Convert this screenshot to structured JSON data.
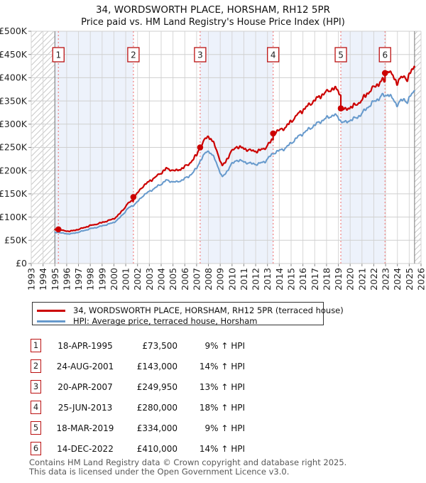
{
  "page": {
    "title": "34, WORDSWORTH PLACE, HORSHAM, RH12 5PR",
    "subtitle": "Price paid vs. HM Land Registry's House Price Index (HPI)"
  },
  "chart_data": {
    "type": "line",
    "title": "34, WORDSWORTH PLACE, HORSHAM, RH12 5PR",
    "subtitle": "Price paid vs. HM Land Registry's House Price Index (HPI)",
    "x_axis": {
      "min": 1993,
      "max": 2026,
      "tick_step": 1
    },
    "y_axis": {
      "min": 0,
      "max": 500000,
      "tick_step": 50000,
      "tick_labels": [
        "£0",
        "£50K",
        "£100K",
        "£150K",
        "£200K",
        "£250K",
        "£300K",
        "£350K",
        "£400K",
        "£450K",
        "£500K"
      ]
    },
    "grid": true,
    "legend_position": "below",
    "data_domain": [
      1995.0,
      2025.45
    ],
    "hatch_regions": [
      [
        1993,
        1995.0
      ],
      [
        2025.45,
        2026
      ]
    ],
    "shaded_bands": [
      [
        1995.0,
        2001.65
      ],
      [
        2007.3,
        2013.48
      ],
      [
        2019.21,
        2022.95
      ]
    ],
    "colors": {
      "price_line": "#cc0000",
      "hpi_line": "#6699cc",
      "sale_marker": "#cc0000",
      "sale_dashed_line": "#f08080",
      "band_fill": "#edf2fb",
      "grid_v": "#d6d6d6",
      "grid_h": "#cfcfcf",
      "hatch": "#c9c9c9",
      "boundary": "#7a7a7a",
      "tick_text": "#262626",
      "number_box_border": "#bb1111"
    },
    "series": [
      {
        "name": "34, WORDSWORTH PLACE, HORSHAM, RH12 5PR (terraced house)",
        "key": "price_indexed",
        "color": "#cc0000"
      },
      {
        "name": "HPI: Average price, terraced house, Horsham",
        "key": "hpi",
        "color": "#6699cc",
        "anchors": [
          [
            1995.0,
            66500
          ],
          [
            1995.3,
            67400
          ],
          [
            1995.7,
            65000
          ],
          [
            1996.1,
            63800
          ],
          [
            1996.5,
            64500
          ],
          [
            1997.0,
            67500
          ],
          [
            1997.5,
            71000
          ],
          [
            1998.0,
            75000
          ],
          [
            1998.5,
            77500
          ],
          [
            1999.0,
            81000
          ],
          [
            1999.5,
            84500
          ],
          [
            2000.0,
            88500
          ],
          [
            2000.4,
            96000
          ],
          [
            2000.8,
            107000
          ],
          [
            2001.2,
            119000
          ],
          [
            2001.65,
            125400
          ],
          [
            2002.0,
            133000
          ],
          [
            2002.5,
            147000
          ],
          [
            2003.0,
            155000
          ],
          [
            2003.5,
            163000
          ],
          [
            2004.0,
            171000
          ],
          [
            2004.4,
            179000
          ],
          [
            2004.8,
            177000
          ],
          [
            2005.3,
            175000
          ],
          [
            2005.8,
            180000
          ],
          [
            2006.3,
            187000
          ],
          [
            2006.7,
            196000
          ],
          [
            2007.0,
            205000
          ],
          [
            2007.3,
            221200
          ],
          [
            2007.9,
            243000
          ],
          [
            2008.2,
            238000
          ],
          [
            2008.6,
            222000
          ],
          [
            2009.0,
            196000
          ],
          [
            2009.17,
            185000
          ],
          [
            2009.5,
            196000
          ],
          [
            2009.9,
            212000
          ],
          [
            2010.4,
            223000
          ],
          [
            2011.0,
            219000
          ],
          [
            2011.6,
            215000
          ],
          [
            2012.2,
            214000
          ],
          [
            2012.8,
            220000
          ],
          [
            2013.48,
            237300
          ],
          [
            2014.0,
            243000
          ],
          [
            2014.5,
            248000
          ],
          [
            2015.0,
            259000
          ],
          [
            2015.5,
            271000
          ],
          [
            2016.0,
            280000
          ],
          [
            2016.5,
            289000
          ],
          [
            2017.0,
            298000
          ],
          [
            2017.5,
            306000
          ],
          [
            2018.0,
            313000
          ],
          [
            2018.6,
            320000
          ],
          [
            2019.0,
            315000
          ],
          [
            2019.21,
            306400
          ],
          [
            2019.6,
            303000
          ],
          [
            2020.0,
            309000
          ],
          [
            2020.5,
            313000
          ],
          [
            2021.0,
            323000
          ],
          [
            2021.5,
            337000
          ],
          [
            2022.0,
            348000
          ],
          [
            2022.5,
            357000
          ],
          [
            2022.8,
            363000
          ],
          [
            2022.95,
            359600
          ],
          [
            2023.2,
            366000
          ],
          [
            2023.6,
            354000
          ],
          [
            2023.95,
            342000
          ],
          [
            2024.3,
            350000
          ],
          [
            2024.6,
            353000
          ],
          [
            2024.85,
            348000
          ],
          [
            2025.1,
            360000
          ],
          [
            2025.45,
            372000
          ]
        ]
      }
    ],
    "sales": [
      {
        "num": "1",
        "date": "18-APR-1995",
        "year": 1995.3,
        "price": 73500,
        "price_label": "£73,500",
        "vs_hpi": "9% ↑ HPI"
      },
      {
        "num": "2",
        "date": "24-AUG-2001",
        "year": 2001.65,
        "price": 143000,
        "price_label": "£143,000",
        "vs_hpi": "14% ↑ HPI"
      },
      {
        "num": "3",
        "date": "20-APR-2007",
        "year": 2007.3,
        "price": 249950,
        "price_label": "£249,950",
        "vs_hpi": "13% ↑ HPI"
      },
      {
        "num": "4",
        "date": "25-JUN-2013",
        "year": 2013.48,
        "price": 280000,
        "price_label": "£280,000",
        "vs_hpi": "18% ↑ HPI"
      },
      {
        "num": "5",
        "date": "18-MAR-2019",
        "year": 2019.21,
        "price": 334000,
        "price_label": "£334,000",
        "vs_hpi": "9% ↑ HPI"
      },
      {
        "num": "6",
        "date": "14-DEC-2022",
        "year": 2022.95,
        "price": 410000,
        "price_label": "£410,000",
        "vs_hpi": "14% ↑ HPI"
      }
    ]
  },
  "footer": {
    "line1": "Contains HM Land Registry data © Crown copyright and database right 2025.",
    "line2": "This data is licensed under the Open Government Licence v3.0."
  }
}
